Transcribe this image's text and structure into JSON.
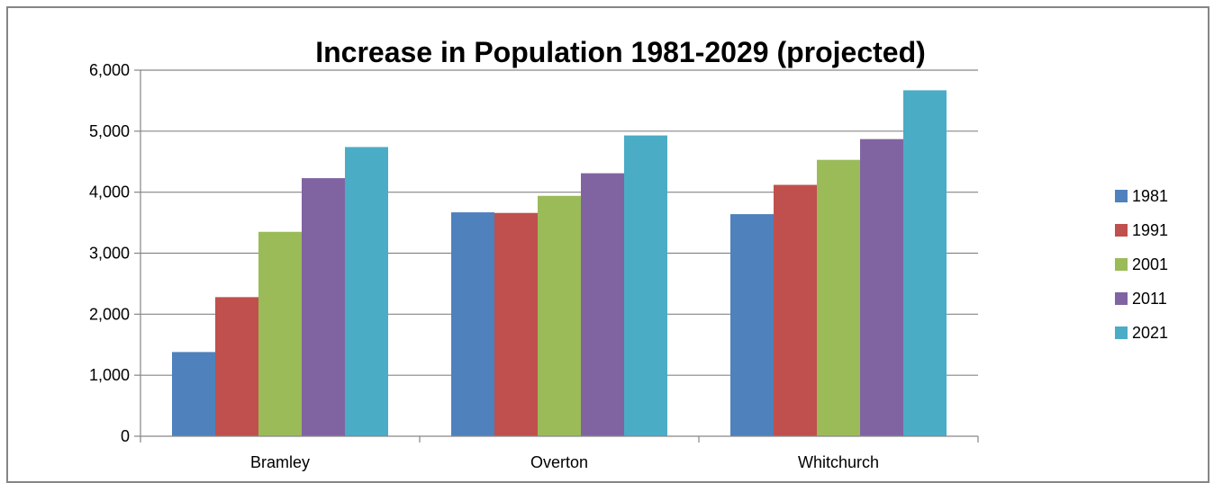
{
  "chart_data": {
    "type": "bar",
    "title": "Increase in Population 1981-2029 (projected)",
    "xlabel": "",
    "ylabel": "",
    "categories": [
      "Bramley",
      "Overton",
      "Whitchurch"
    ],
    "series": [
      {
        "name": "1981",
        "color": "#4F81BD",
        "values": [
          1380,
          3670,
          3640
        ]
      },
      {
        "name": "1991",
        "color": "#C0504D",
        "values": [
          2280,
          3660,
          4120
        ]
      },
      {
        "name": "2001",
        "color": "#9BBB59",
        "values": [
          3350,
          3940,
          4530
        ]
      },
      {
        "name": "2011",
        "color": "#8064A2",
        "values": [
          4230,
          4310,
          4870
        ]
      },
      {
        "name": "2021",
        "color": "#4BACC6",
        "values": [
          4740,
          4930,
          5670
        ]
      }
    ],
    "ylim": [
      0,
      6000
    ],
    "yticks": [
      "0",
      "1,000",
      "2,000",
      "3,000",
      "4,000",
      "5,000",
      "6,000"
    ],
    "grid": true,
    "legend_position": "right"
  }
}
